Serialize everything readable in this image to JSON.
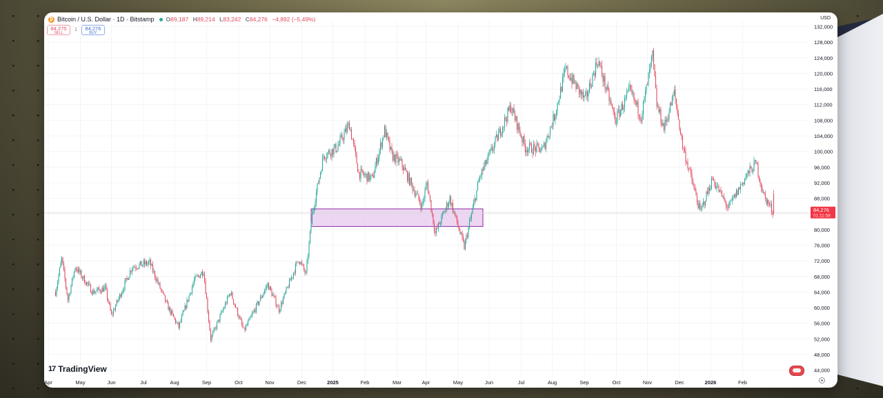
{
  "header": {
    "symbol": "Bitcoin / U.S. Dollar · 1D · Bitstamp",
    "open_label": "O",
    "open": "89,187",
    "high_label": "H",
    "high": "89,214",
    "low_label": "L",
    "low": "83,242",
    "close_label": "C",
    "close": "84,276",
    "change": "−4,892 (−5.49%)"
  },
  "trade": {
    "sell_price": "84,275",
    "sell_label": "SELL",
    "qty": "1",
    "buy_price": "84,276",
    "buy_label": "BUY"
  },
  "currency": "USD",
  "brand": "TradingView",
  "colors": {
    "up": "#26a69a",
    "down": "#e04a5f",
    "zone_fill": "#e7c8ee",
    "zone_border": "#8c2aa3",
    "price_tag": "#f23645"
  },
  "price_tag": {
    "value": "84,276",
    "countdown": "01:11:58"
  },
  "chart_data": {
    "type": "candlestick",
    "yaxis": {
      "ticks": [
        44000,
        48000,
        52000,
        56000,
        60000,
        64000,
        68000,
        72000,
        76000,
        80000,
        84000,
        88000,
        92000,
        96000,
        100000,
        104000,
        108000,
        112000,
        116000,
        120000,
        124000,
        128000,
        132000
      ],
      "tick_labels": [
        "44,000",
        "48,000",
        "52,000",
        "56,000",
        "60,000",
        "64,000",
        "68,000",
        "72,000",
        "76,000",
        "80,000",
        "84,000",
        "88,000",
        "92,000",
        "96,000",
        "100,000",
        "104,000",
        "108,000",
        "112,000",
        "116,000",
        "120,000",
        "124,000",
        "128,000",
        "132,000"
      ],
      "ylim": [
        42000,
        133500
      ]
    },
    "xaxis": {
      "labels": [
        "Apr",
        "May",
        "Jun",
        "Jul",
        "Aug",
        "Sep",
        "Oct",
        "Nov",
        "Dec",
        "2025",
        "Feb",
        "Mar",
        "Apr",
        "May",
        "Jun",
        "Jul",
        "Aug",
        "Sep",
        "Oct",
        "Nov",
        "Dec",
        "2026",
        "Feb"
      ],
      "bold": [
        "2025",
        "2026"
      ]
    },
    "path": [
      [
        "2024-03-08",
        64000
      ],
      [
        "2024-03-14",
        72500
      ],
      [
        "2024-03-20",
        62000
      ],
      [
        "2024-03-27",
        70500
      ],
      [
        "2024-04-13",
        64000
      ],
      [
        "2024-04-25",
        65000
      ],
      [
        "2024-05-01",
        58000
      ],
      [
        "2024-05-21",
        70500
      ],
      [
        "2024-06-07",
        71500
      ],
      [
        "2024-06-24",
        60500
      ],
      [
        "2024-07-05",
        55000
      ],
      [
        "2024-07-20",
        67000
      ],
      [
        "2024-07-29",
        69500
      ],
      [
        "2024-08-05",
        52000
      ],
      [
        "2024-08-24",
        64000
      ],
      [
        "2024-09-06",
        54000
      ],
      [
        "2024-09-29",
        66000
      ],
      [
        "2024-10-10",
        59500
      ],
      [
        "2024-10-29",
        72500
      ],
      [
        "2024-11-05",
        68500
      ],
      [
        "2024-11-11",
        84000
      ],
      [
        "2024-11-22",
        99000
      ],
      [
        "2024-12-05",
        101000
      ],
      [
        "2024-12-17",
        107000
      ],
      [
        "2024-12-26",
        94500
      ],
      [
        "2025-01-08",
        93000
      ],
      [
        "2025-01-20",
        105500
      ],
      [
        "2025-01-27",
        99000
      ],
      [
        "2025-02-05",
        97000
      ],
      [
        "2025-02-25",
        86000
      ],
      [
        "2025-03-02",
        92000
      ],
      [
        "2025-03-10",
        79000
      ],
      [
        "2025-03-24",
        88000
      ],
      [
        "2025-04-07",
        75500
      ],
      [
        "2025-04-22",
        93500
      ],
      [
        "2025-05-08",
        103000
      ],
      [
        "2025-05-22",
        111500
      ],
      [
        "2025-06-05",
        101000
      ],
      [
        "2025-06-22",
        100500
      ],
      [
        "2025-07-03",
        109000
      ],
      [
        "2025-07-14",
        121000
      ],
      [
        "2025-08-02",
        113000
      ],
      [
        "2025-08-14",
        123500
      ],
      [
        "2025-08-31",
        108000
      ],
      [
        "2025-09-14",
        115500
      ],
      [
        "2025-09-25",
        109000
      ],
      [
        "2025-10-06",
        124500
      ],
      [
        "2025-10-10",
        112000
      ],
      [
        "2025-10-17",
        106000
      ],
      [
        "2025-10-27",
        115000
      ],
      [
        "2025-11-04",
        101500
      ],
      [
        "2025-11-21",
        84500
      ],
      [
        "2025-12-03",
        93000
      ],
      [
        "2025-12-18",
        85500
      ],
      [
        "2026-01-05",
        94000
      ],
      [
        "2026-01-14",
        97000
      ],
      [
        "2026-01-21",
        89000
      ],
      [
        "2026-01-31",
        84276
      ]
    ],
    "zone": {
      "x_from": "2024-11-10",
      "x_to": "2025-04-25",
      "y_from": 80800,
      "y_to": 85300
    },
    "current_price": 84276
  }
}
